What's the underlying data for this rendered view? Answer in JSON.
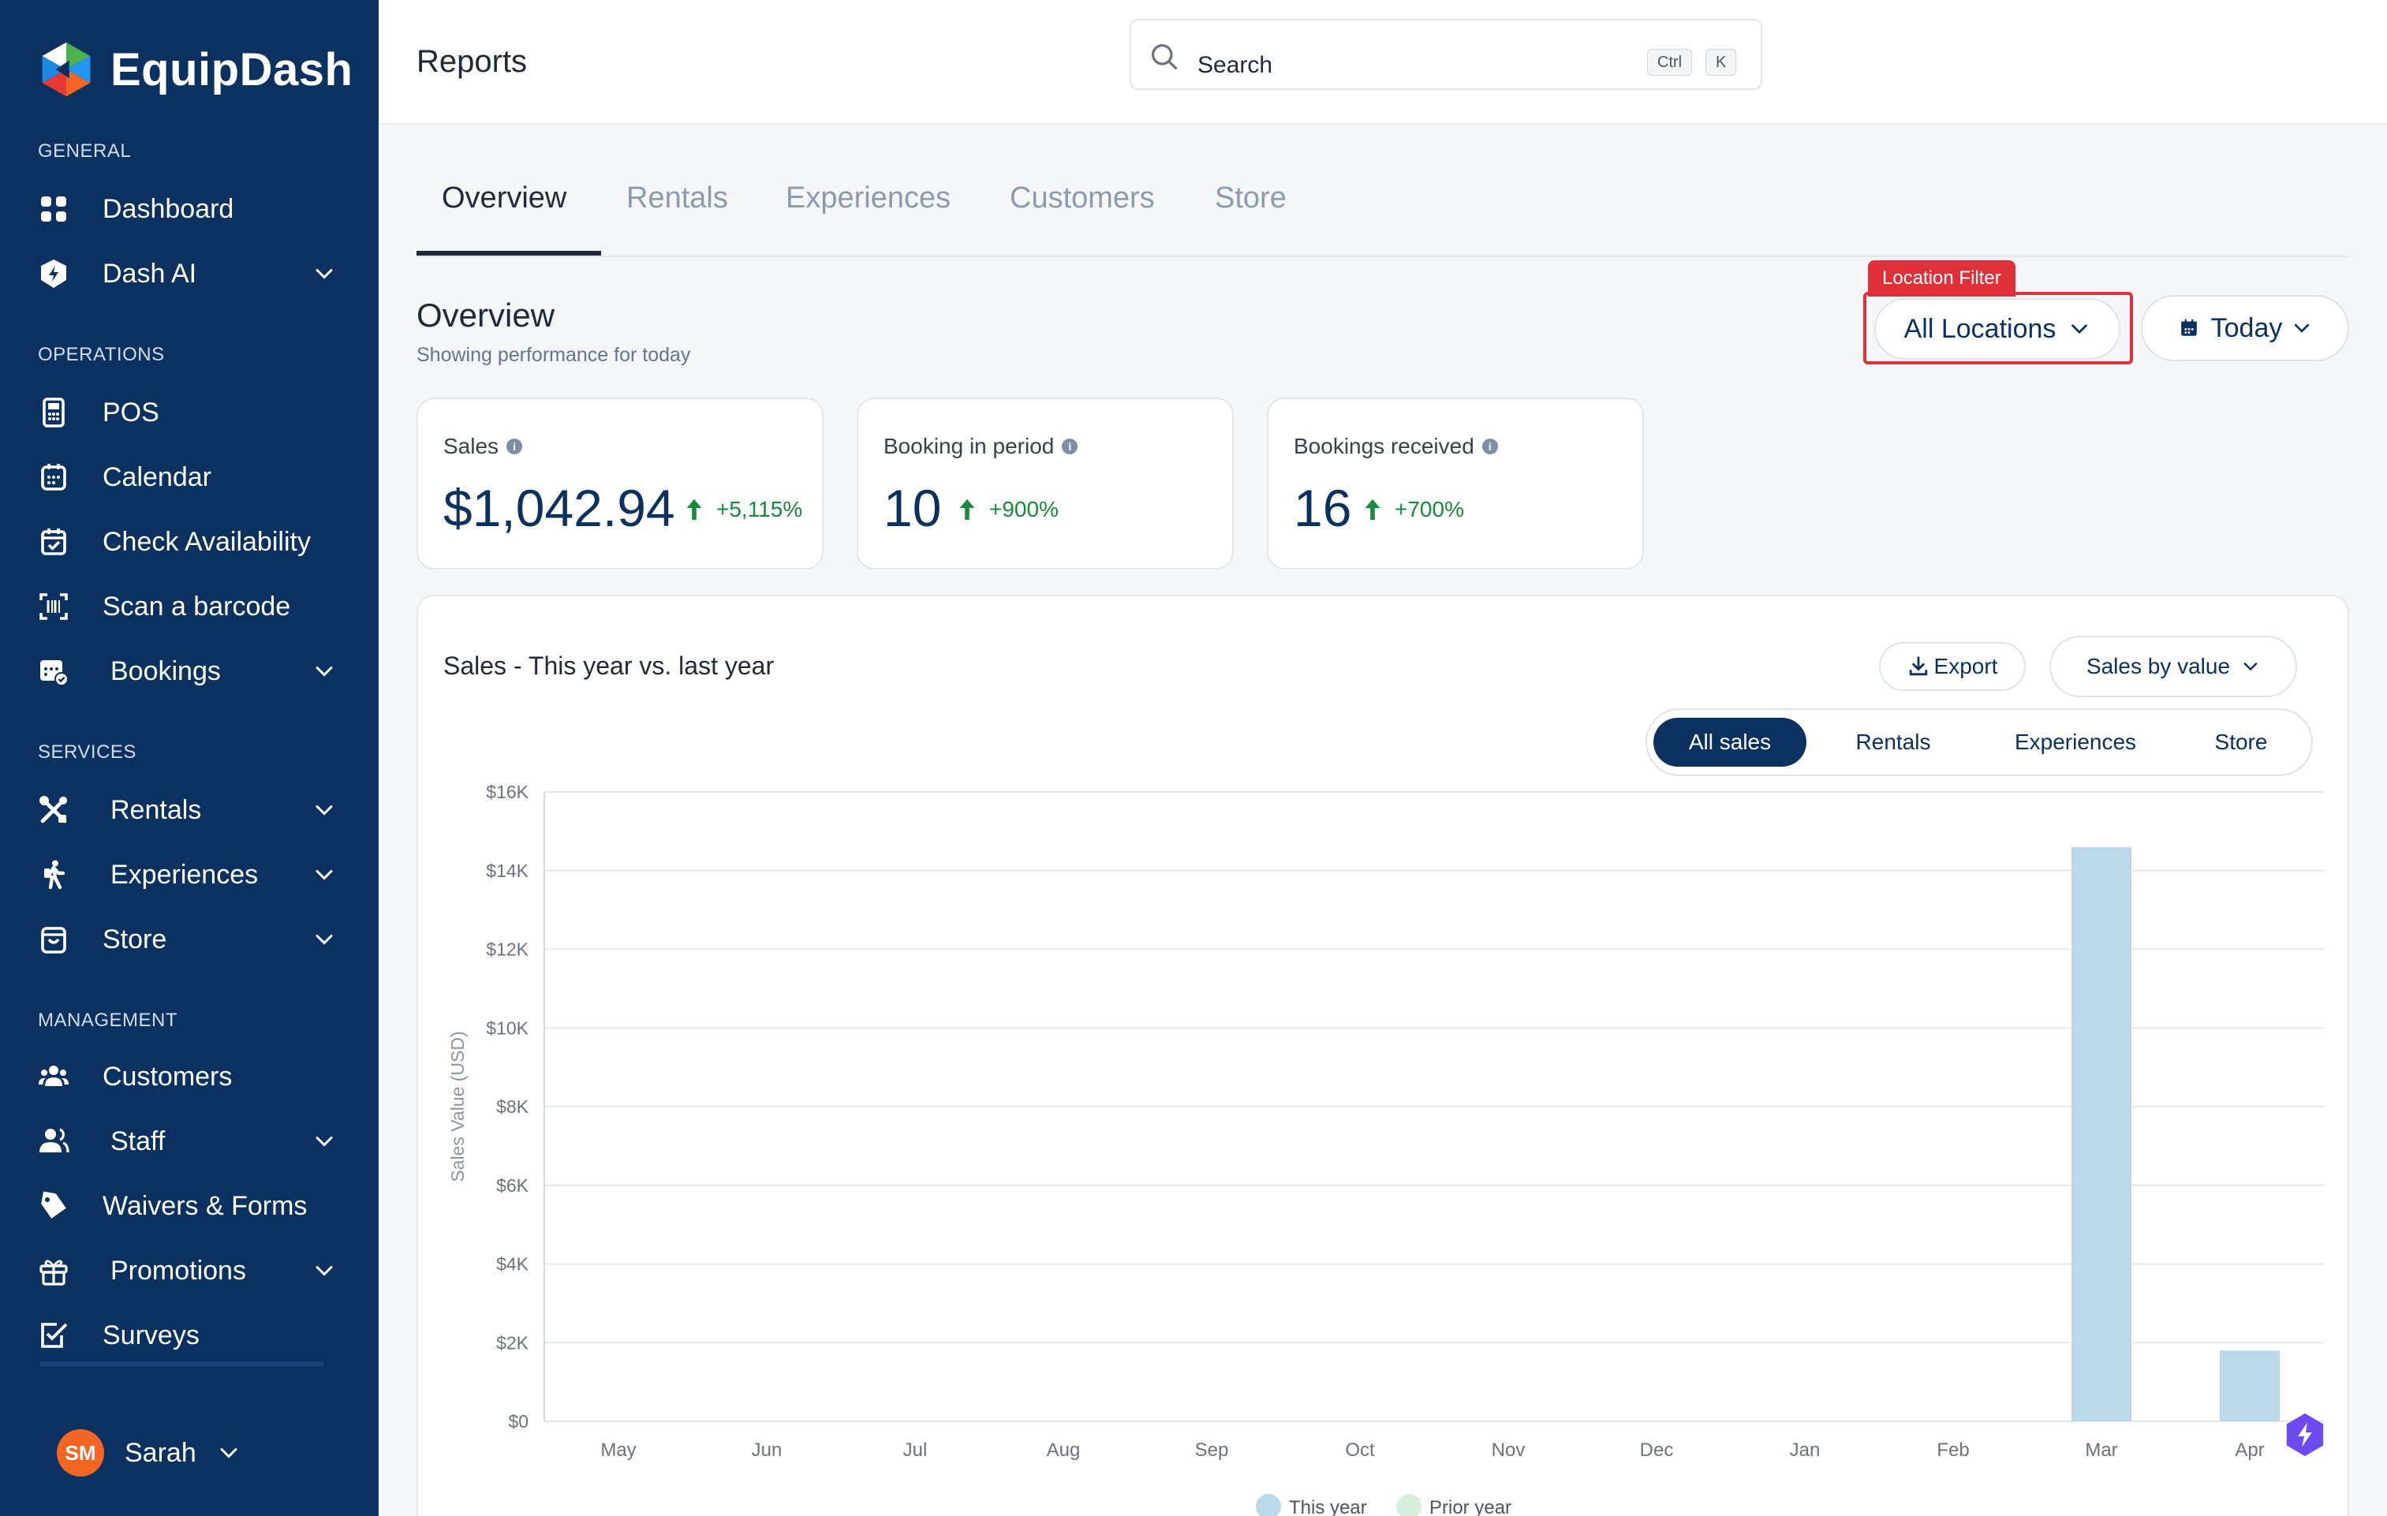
{
  "brand": {
    "name": "EquipDash"
  },
  "sidebar": {
    "sections": {
      "general": "GENERAL",
      "operations": "OPERATIONS",
      "services": "SERVICES",
      "management": "MANAGEMENT"
    },
    "items": {
      "dashboard": "Dashboard",
      "dash_ai": "Dash AI",
      "pos": "POS",
      "calendar": "Calendar",
      "check_availability": "Check Availability",
      "scan_barcode": "Scan a barcode",
      "bookings": "Bookings",
      "rentals": "Rentals",
      "experiences": "Experiences",
      "store": "Store",
      "customers": "Customers",
      "staff": "Staff",
      "waivers": "Waivers & Forms",
      "promotions": "Promotions",
      "surveys": "Surveys"
    },
    "user": {
      "initials": "SM",
      "name": "Sarah"
    }
  },
  "header": {
    "title": "Reports",
    "search": {
      "placeholder": "Search",
      "shortcut_1": "Ctrl",
      "shortcut_2": "K"
    }
  },
  "tabs": [
    "Overview",
    "Rentals",
    "Experiences",
    "Customers",
    "Store"
  ],
  "overview": {
    "title": "Overview",
    "subtitle": "Showing performance for today",
    "location_filter_tag": "Location Filter",
    "location_value": "All Locations",
    "date_value": "Today"
  },
  "stats": [
    {
      "label": "Sales",
      "value": "$1,042.94",
      "delta": "+5,115%"
    },
    {
      "label": "Booking in period",
      "value": "10",
      "delta": "+900%"
    },
    {
      "label": "Bookings received",
      "value": "16",
      "delta": "+700%"
    }
  ],
  "panel": {
    "title": "Sales - This year vs. last year",
    "export_label": "Export",
    "metric_label": "Sales by value",
    "segments": [
      "All sales",
      "Rentals",
      "Experiences",
      "Store"
    ]
  },
  "colors": {
    "sidebar": "#0b3161",
    "accent": "#0b3161",
    "positive": "#178a3c",
    "highlight": "#e0303a",
    "this_year": "#bcd9ec",
    "prior_year": "#d8efe0"
  },
  "chart_data": {
    "type": "bar",
    "ylabel": "Sales Value (USD)",
    "ylim": [
      0,
      16000
    ],
    "yticks": [
      0,
      2000,
      4000,
      6000,
      8000,
      10000,
      12000,
      14000,
      16000
    ],
    "ytick_labels": [
      "$0",
      "$2K",
      "$4K",
      "$6K",
      "$8K",
      "$10K",
      "$12K",
      "$14K",
      "$16K"
    ],
    "categories": [
      "May",
      "Jun",
      "Jul",
      "Aug",
      "Sep",
      "Oct",
      "Nov",
      "Dec",
      "Jan",
      "Feb",
      "Mar",
      "Apr"
    ],
    "series": [
      {
        "name": "This year",
        "values": [
          0,
          0,
          0,
          0,
          0,
          0,
          0,
          0,
          0,
          0,
          14600,
          1800
        ]
      },
      {
        "name": "Prior year",
        "values": [
          0,
          0,
          0,
          0,
          0,
          0,
          0,
          0,
          0,
          0,
          0,
          0
        ]
      }
    ],
    "legend": "bottom",
    "grid": true
  }
}
